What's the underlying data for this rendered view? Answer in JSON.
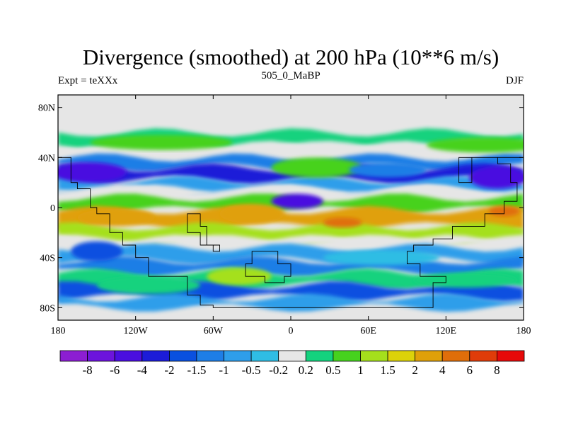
{
  "chart_data": {
    "type": "heatmap",
    "title": "Divergence (smoothed) at 200 hPa (10**6 m/s)",
    "left_label": "Expt = teXXx",
    "center_label": "505_0_MaBP",
    "right_label": "DJF",
    "x_ticks": [
      "180",
      "120W",
      "60W",
      "0",
      "60E",
      "120E",
      "180"
    ],
    "y_ticks": [
      "80N",
      "40N",
      "0",
      "40S",
      "80S"
    ],
    "x_range": [
      -180,
      180
    ],
    "y_range": [
      -90,
      90
    ],
    "colorbar": {
      "labels": [
        "-8",
        "-6",
        "-4",
        "-2",
        "-1.5",
        "-1",
        "-0.5",
        "-0.2",
        "0.2",
        "0.5",
        "1",
        "1.5",
        "2",
        "4",
        "6",
        "8"
      ],
      "colors": [
        "#8c1ed2",
        "#6c14dc",
        "#4a0ee0",
        "#1c1cd8",
        "#0a50e0",
        "#1e7ee6",
        "#2e9eea",
        "#2fbde4",
        "#e6e6e6",
        "#14d27e",
        "#46d21e",
        "#a5e01c",
        "#dcd20a",
        "#e0a00a",
        "#e06e0a",
        "#e03c0a",
        "#e60a0a"
      ]
    },
    "bands": [
      {
        "lat": [
          60,
          50
        ],
        "value": 0.5
      },
      {
        "lat": [
          50,
          40
        ],
        "value": 0.2
      },
      {
        "lat": [
          40,
          32
        ],
        "value": -1
      },
      {
        "lat": [
          32,
          22
        ],
        "value": -2
      },
      {
        "lat": [
          22,
          15
        ],
        "value": -0.5
      },
      {
        "lat": [
          15,
          8
        ],
        "value": 0.2
      },
      {
        "lat": [
          8,
          -2
        ],
        "value": 1
      },
      {
        "lat": [
          -2,
          -15
        ],
        "value": 4
      },
      {
        "lat": [
          -15,
          -25
        ],
        "value": 1.5
      },
      {
        "lat": [
          -25,
          -32
        ],
        "value": 0.2
      },
      {
        "lat": [
          -32,
          -42
        ],
        "value": -0.5
      },
      {
        "lat": [
          -42,
          -52
        ],
        "value": -1
      },
      {
        "lat": [
          -52,
          -62
        ],
        "value": 0.5
      },
      {
        "lat": [
          -62,
          -72
        ],
        "value": -1.5
      },
      {
        "lat": [
          -72,
          -80
        ],
        "value": -0.5
      }
    ],
    "blobs": [
      {
        "lon": -100,
        "lat": 52,
        "rlon": 55,
        "rlat": 6,
        "value": 1
      },
      {
        "lon": 150,
        "lat": 50,
        "rlon": 45,
        "rlat": 6,
        "value": 1
      },
      {
        "lon": -155,
        "lat": 28,
        "rlon": 28,
        "rlat": 8,
        "value": -4
      },
      {
        "lon": 160,
        "lat": 24,
        "rlon": 22,
        "rlat": 9,
        "value": -4
      },
      {
        "lon": 20,
        "lat": 32,
        "rlon": 35,
        "rlat": 8,
        "value": 1
      },
      {
        "lon": 75,
        "lat": 30,
        "rlon": 30,
        "rlat": 6,
        "value": -1
      },
      {
        "lon": 5,
        "lat": 5,
        "rlon": 20,
        "rlat": 6,
        "value": -4
      },
      {
        "lon": -30,
        "lat": -5,
        "rlon": 25,
        "rlat": 8,
        "value": 4
      },
      {
        "lon": -135,
        "lat": -8,
        "rlon": 30,
        "rlat": 7,
        "value": 4
      },
      {
        "lon": 40,
        "lat": -12,
        "rlon": 15,
        "rlat": 4,
        "value": 6
      },
      {
        "lon": 165,
        "lat": -3,
        "rlon": 12,
        "rlat": 4,
        "value": 6
      },
      {
        "lon": -40,
        "lat": -55,
        "rlon": 25,
        "rlat": 7,
        "value": 1.5
      },
      {
        "lon": 70,
        "lat": -40,
        "rlon": 45,
        "rlat": 6,
        "value": -0.2
      },
      {
        "lon": 135,
        "lat": -58,
        "rlon": 40,
        "rlat": 6,
        "value": 0.5
      },
      {
        "lon": -110,
        "lat": -62,
        "rlon": 40,
        "rlat": 7,
        "value": 0.5
      },
      {
        "lon": -150,
        "lat": -35,
        "rlon": 20,
        "rlat": 8,
        "value": -1.5
      }
    ],
    "landmask": [
      [
        [
          -180,
          40
        ],
        [
          -170,
          40
        ],
        [
          -165,
          20
        ],
        [
          -155,
          15
        ],
        [
          -150,
          0
        ],
        [
          -140,
          -5
        ],
        [
          -130,
          -20
        ],
        [
          -120,
          -30
        ],
        [
          -110,
          -40
        ],
        [
          -80,
          -55
        ],
        [
          -70,
          -70
        ],
        [
          -60,
          -78
        ],
        [
          -20,
          -80
        ],
        [
          40,
          -80
        ],
        [
          110,
          -80
        ],
        [
          120,
          -60
        ],
        [
          100,
          -55
        ],
        [
          90,
          -45
        ],
        [
          95,
          -35
        ],
        [
          110,
          -30
        ],
        [
          125,
          -25
        ],
        [
          150,
          -15
        ],
        [
          165,
          -5
        ],
        [
          175,
          5
        ],
        [
          170,
          20
        ],
        [
          160,
          35
        ],
        [
          140,
          40
        ],
        [
          130,
          20
        ],
        [
          135,
          40
        ],
        [
          170,
          40
        ],
        [
          180,
          40
        ]
      ],
      [
        [
          -80,
          -10
        ],
        [
          -70,
          -5
        ],
        [
          -65,
          -15
        ],
        [
          -55,
          -30
        ],
        [
          -60,
          -35
        ],
        [
          -70,
          -30
        ],
        [
          -80,
          -20
        ],
        [
          -80,
          -10
        ]
      ],
      [
        [
          -20,
          -35
        ],
        [
          -10,
          -35
        ],
        [
          0,
          -45
        ],
        [
          -5,
          -55
        ],
        [
          -20,
          -60
        ],
        [
          -35,
          -55
        ],
        [
          -30,
          -45
        ],
        [
          -20,
          -35
        ]
      ]
    ]
  }
}
